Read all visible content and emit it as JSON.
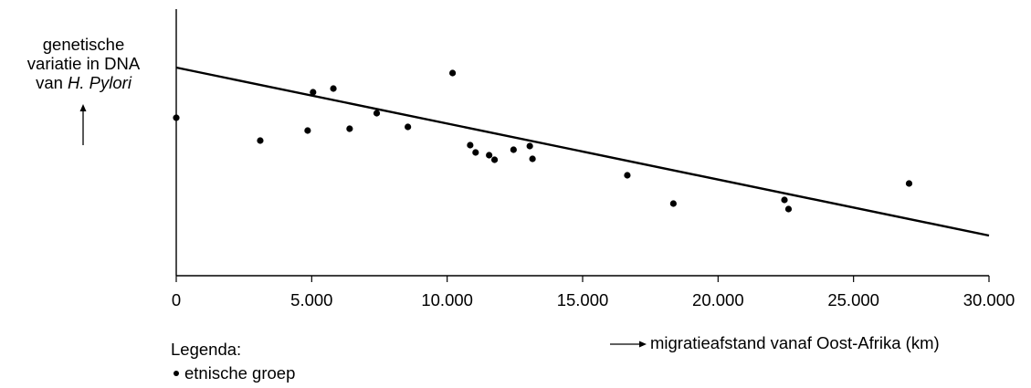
{
  "chart_data": {
    "type": "scatter",
    "title": "",
    "ylabel_lines": [
      "genetische",
      "variatie in DNA",
      "van "
    ],
    "ylabel_italic": "H. Pylori",
    "xlabel": "migratieafstand vanaf Oost-Afrika (km)",
    "xlim": [
      0,
      30000
    ],
    "xticks": [
      0,
      5000,
      10000,
      15000,
      20000,
      25000,
      30000
    ],
    "xtick_labels": [
      "0",
      "5.000",
      "10.000",
      "15.000",
      "20.000",
      "25.000",
      "30.000"
    ],
    "y_axis_values_shown": false,
    "series": [
      {
        "name": "etnische groep",
        "points": [
          [
            0,
            173
          ],
          [
            3100,
            148
          ],
          [
            4850,
            159
          ],
          [
            5050,
            201
          ],
          [
            5800,
            205
          ],
          [
            6400,
            161
          ],
          [
            7400,
            178
          ],
          [
            8550,
            163
          ],
          [
            10200,
            222
          ],
          [
            10850,
            143
          ],
          [
            11050,
            135
          ],
          [
            11550,
            132
          ],
          [
            11750,
            127
          ],
          [
            12450,
            138
          ],
          [
            13050,
            142
          ],
          [
            13150,
            128
          ],
          [
            16650,
            110
          ],
          [
            18350,
            79
          ],
          [
            22450,
            83
          ],
          [
            22600,
            73
          ],
          [
            27050,
            101
          ]
        ]
      }
    ],
    "trendline": {
      "x": [
        0,
        30000
      ],
      "y": [
        228,
        44
      ]
    },
    "grid": false,
    "legend": {
      "title": "Legenda:",
      "items": [
        {
          "label": "etnische groep",
          "marker": "dot"
        }
      ],
      "placement": "bottom-left"
    }
  }
}
